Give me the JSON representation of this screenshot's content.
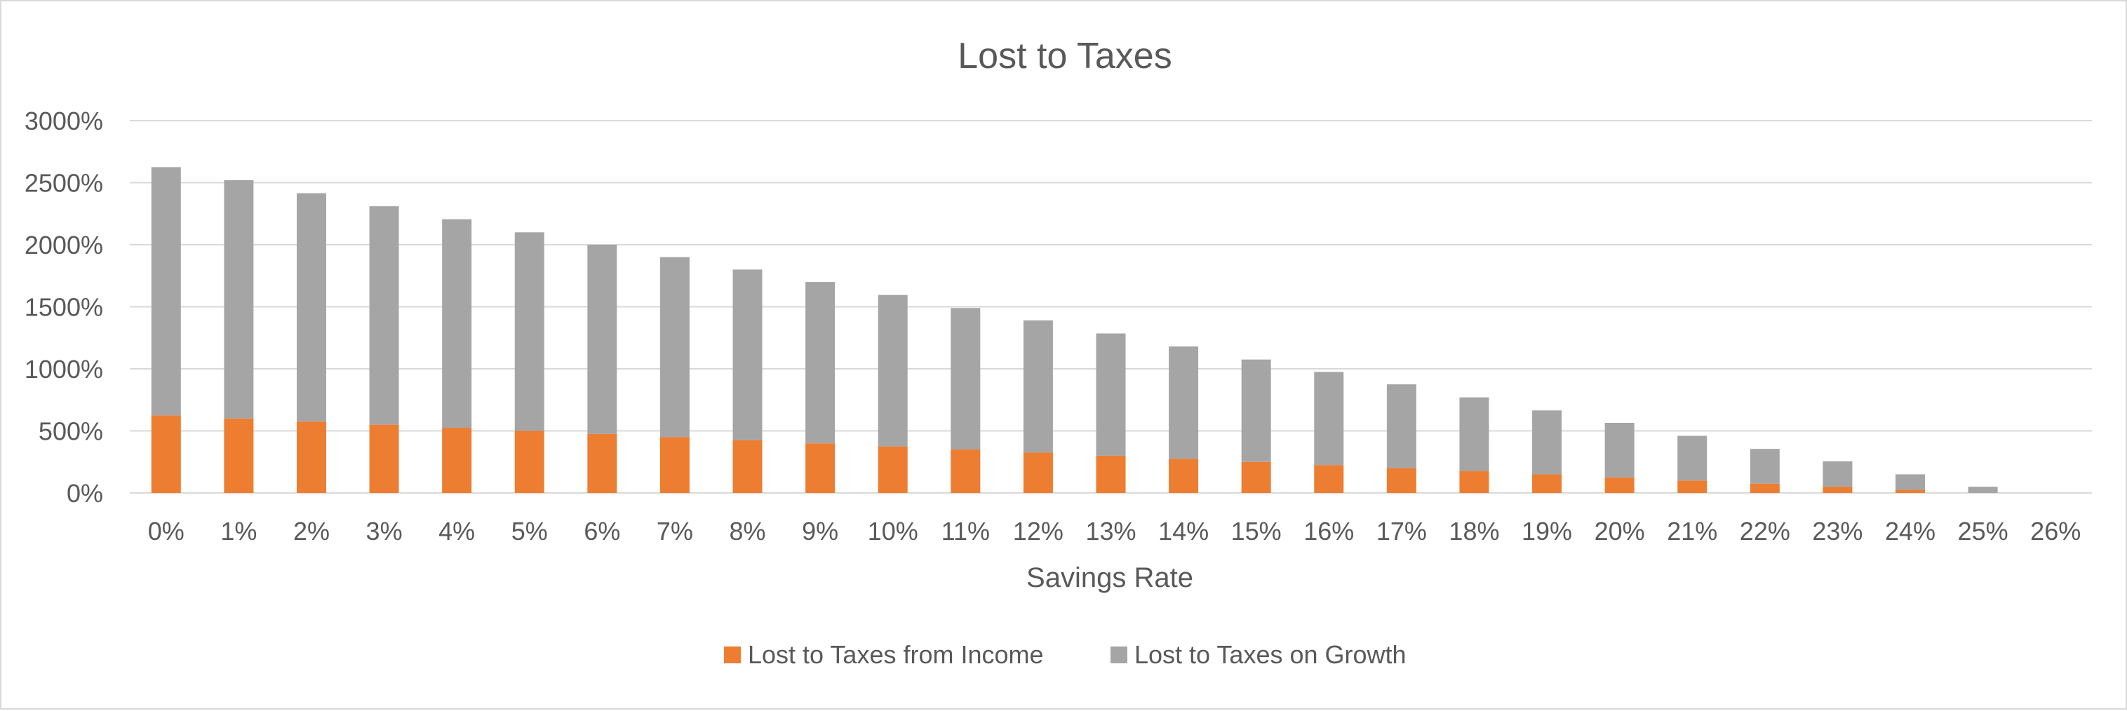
{
  "chart_data": {
    "type": "bar",
    "stacked": true,
    "title": "Lost to Taxes",
    "xlabel": "Savings Rate",
    "ylabel": "",
    "ylim": [
      0,
      3000
    ],
    "y_ticks": [
      "0%",
      "500%",
      "1000%",
      "1500%",
      "2000%",
      "2500%",
      "3000%"
    ],
    "y_tick_values": [
      0,
      500,
      1000,
      1500,
      2000,
      2500,
      3000
    ],
    "grid": true,
    "legend_position": "bottom",
    "categories": [
      "0%",
      "1%",
      "2%",
      "3%",
      "4%",
      "5%",
      "6%",
      "7%",
      "8%",
      "9%",
      "10%",
      "11%",
      "12%",
      "13%",
      "14%",
      "15%",
      "16%",
      "17%",
      "18%",
      "19%",
      "20%",
      "21%",
      "22%",
      "23%",
      "24%",
      "25%",
      "26%"
    ],
    "series": [
      {
        "name": "Lost to Taxes from Income",
        "color": "#ed7d31",
        "values": [
          625,
          600,
          575,
          550,
          525,
          500,
          475,
          450,
          425,
          400,
          375,
          350,
          325,
          300,
          275,
          250,
          225,
          200,
          175,
          150,
          125,
          100,
          75,
          50,
          25,
          0,
          0
        ]
      },
      {
        "name": "Lost to Taxes on Growth",
        "color": "#a5a5a5",
        "values": [
          2000,
          1920,
          1840,
          1760,
          1680,
          1600,
          1525,
          1450,
          1375,
          1300,
          1220,
          1140,
          1065,
          985,
          905,
          825,
          750,
          675,
          595,
          515,
          440,
          360,
          280,
          205,
          125,
          50,
          0
        ]
      }
    ]
  }
}
